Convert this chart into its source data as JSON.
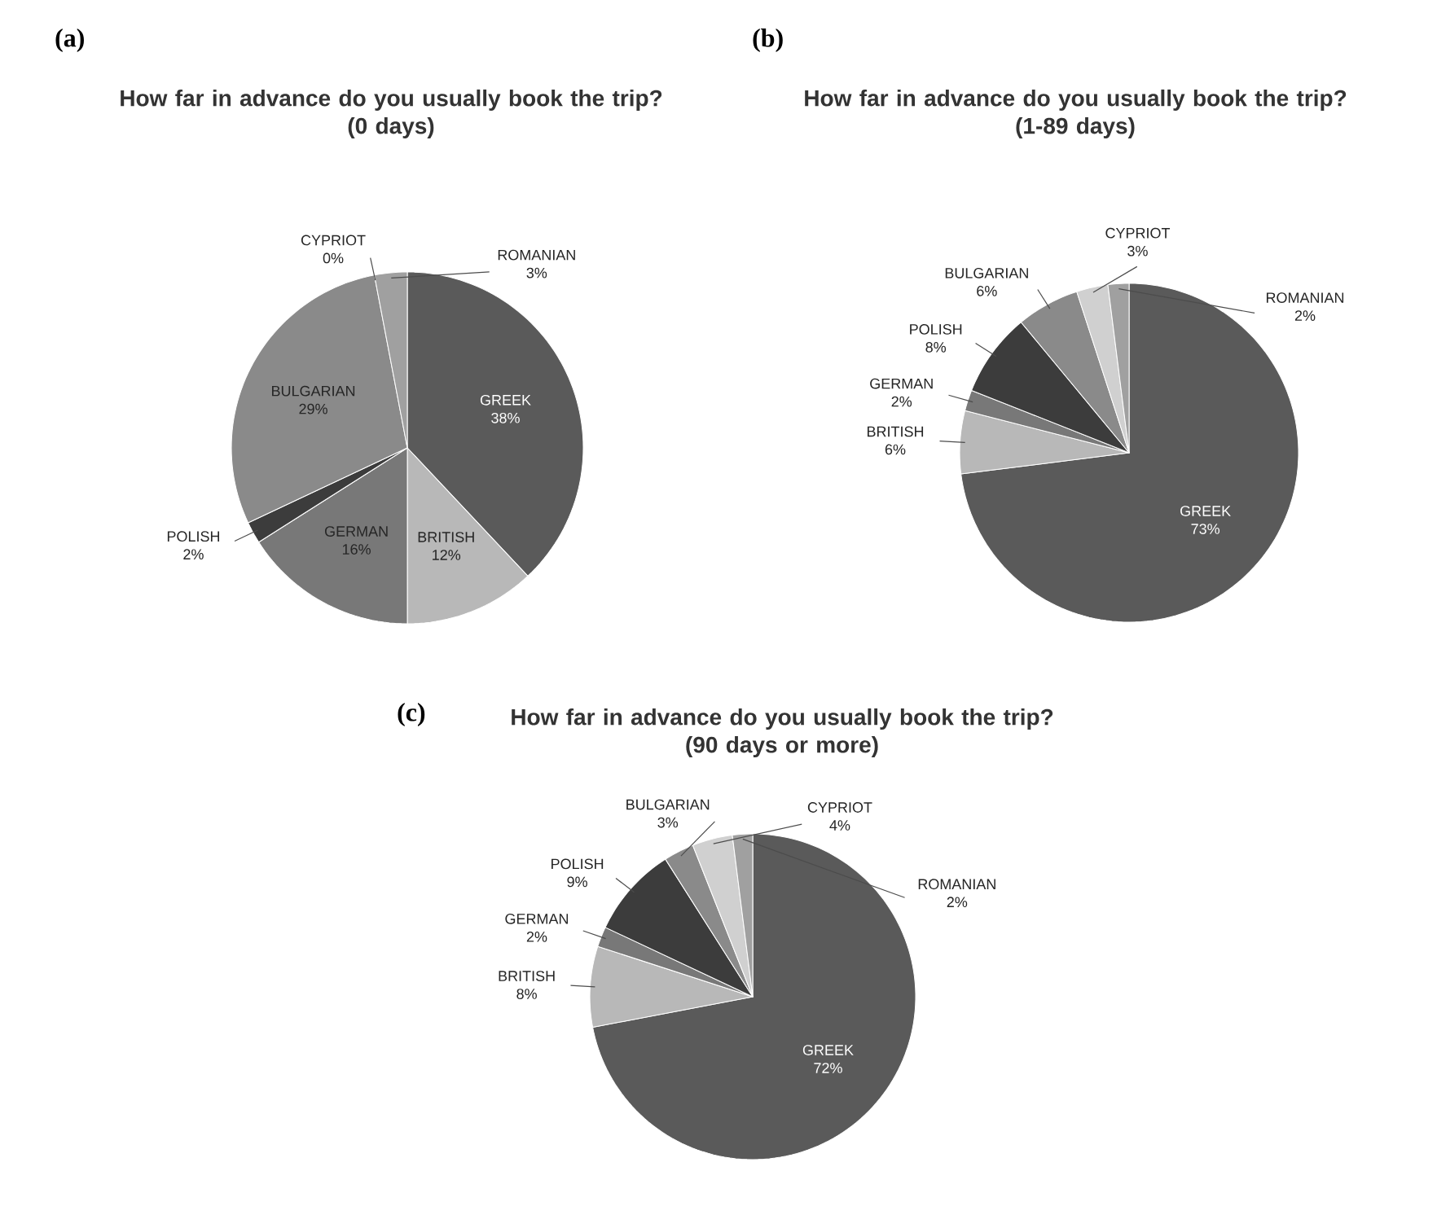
{
  "chart_data": [
    {
      "type": "pie",
      "title": "How far in advance do you usually book the trip?",
      "subtitle": "(0 days)",
      "annotations": [
        "(a)"
      ],
      "categories": [
        "GREEK",
        "BRITISH",
        "GERMAN",
        "POLISH",
        "BULGARIAN",
        "CYPRIOT",
        "ROMANIAN"
      ],
      "values": [
        38,
        12,
        16,
        2,
        29,
        0,
        3
      ],
      "value_labels": [
        "38%",
        "12%",
        "16%",
        "2%",
        "29%",
        "0%",
        "3%"
      ],
      "colors": [
        "#5a5a5a",
        "#b8b8b8",
        "#787878",
        "#3c3c3c",
        "#8a8a8a",
        "#d0d0d0",
        "#a0a0a0"
      ]
    },
    {
      "type": "pie",
      "title": "How far in advance do you usually book the trip?",
      "subtitle": "(1-89 days)",
      "annotations": [
        "(b)"
      ],
      "categories": [
        "GREEK",
        "BRITISH",
        "GERMAN",
        "POLISH",
        "BULGARIAN",
        "CYPRIOT",
        "ROMANIAN"
      ],
      "values": [
        73,
        6,
        2,
        8,
        6,
        3,
        2
      ],
      "value_labels": [
        "73%",
        "6%",
        "2%",
        "8%",
        "6%",
        "3%",
        "2%"
      ],
      "colors": [
        "#5a5a5a",
        "#b8b8b8",
        "#787878",
        "#3c3c3c",
        "#8a8a8a",
        "#d0d0d0",
        "#a0a0a0"
      ]
    },
    {
      "type": "pie",
      "title": "How far in advance do you usually book the trip?",
      "subtitle": "(90 days or more)",
      "annotations": [
        "(c)"
      ],
      "categories": [
        "GREEK",
        "BRITISH",
        "GERMAN",
        "POLISH",
        "BULGARIAN",
        "CYPRIOT",
        "ROMANIAN"
      ],
      "values": [
        72,
        8,
        2,
        9,
        3,
        4,
        2
      ],
      "value_labels": [
        "72%",
        "8%",
        "2%",
        "9%",
        "3%",
        "4%",
        "2%"
      ],
      "colors": [
        "#5a5a5a",
        "#b8b8b8",
        "#787878",
        "#3c3c3c",
        "#8a8a8a",
        "#d0d0d0",
        "#a0a0a0"
      ]
    }
  ]
}
